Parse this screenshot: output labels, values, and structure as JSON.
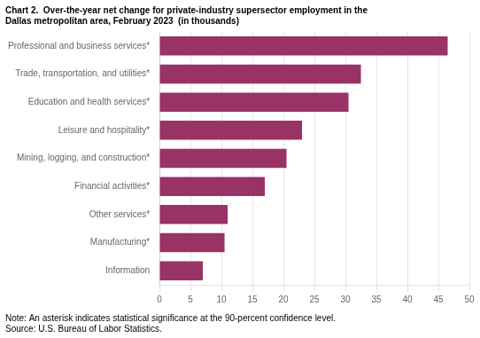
{
  "chart_data": {
    "type": "bar",
    "orientation": "horizontal",
    "title": [
      "Chart 2.  Over-the-year net change for private-industry supersector employment in the",
      "Dallas metropolitan area, February 2023  (in thousands)"
    ],
    "annotations": [
      "Note: An asterisk indicates statistical significance at the 90-percent confidence level.",
      "Source: U.S. Bureau of Labor Statistics."
    ],
    "categories": [
      "Information",
      "Manufacturing*",
      "Other services*",
      "Financial activities*",
      "Mining, logging, and construction*",
      "Leisure and hospitality*",
      "Education and health services*",
      "Trade, transportation, and utilities*",
      "Professional and business services*"
    ],
    "values": [
      7,
      10.5,
      11,
      17,
      20.5,
      23,
      30.5,
      32.5,
      46.5
    ],
    "color": "#993366",
    "xlim": [
      0,
      50
    ],
    "xticks": [
      0,
      5,
      10,
      15,
      20,
      25,
      30,
      35,
      40,
      45,
      50
    ],
    "grid": true
  }
}
